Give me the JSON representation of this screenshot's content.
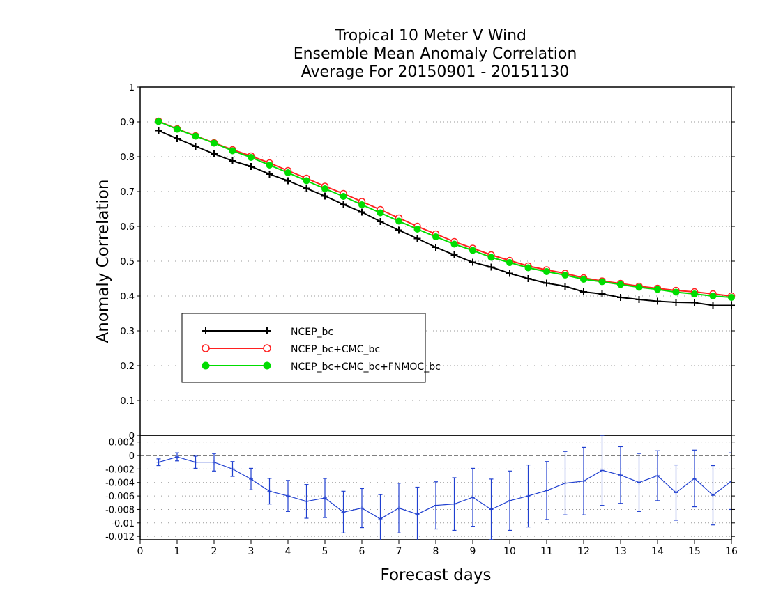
{
  "chart_data": [
    {
      "type": "line",
      "title": [
        "Tropical 10 Meter V Wind",
        "Ensemble Mean Anomaly Correlation",
        "Average For 20150901 - 20151130"
      ],
      "xlabel": "",
      "ylabel": "Anomaly Correlation",
      "xlim": [
        0,
        16
      ],
      "ylim": [
        0,
        1
      ],
      "yticks": [
        "0",
        "0.1",
        "0.2",
        "0.3",
        "0.4",
        "0.5",
        "0.6",
        "0.7",
        "0.8",
        "0.9",
        "1"
      ],
      "grid": "horizontal dotted",
      "legend_placement": "left",
      "x": [
        0.5,
        1,
        1.5,
        2,
        2.5,
        3,
        3.5,
        4,
        4.5,
        5,
        5.5,
        6,
        6.5,
        7,
        7.5,
        8,
        8.5,
        9,
        9.5,
        10,
        10.5,
        11,
        11.5,
        12,
        12.5,
        13,
        13.5,
        14,
        14.5,
        15,
        15.5,
        16
      ],
      "series": [
        {
          "name": "NCEP_bc",
          "color": "#000000",
          "marker": "plus",
          "values": [
            0.875,
            0.852,
            0.83,
            0.808,
            0.788,
            0.772,
            0.75,
            0.731,
            0.709,
            0.687,
            0.663,
            0.641,
            0.614,
            0.589,
            0.565,
            0.54,
            0.518,
            0.497,
            0.483,
            0.465,
            0.45,
            0.437,
            0.428,
            0.412,
            0.406,
            0.396,
            0.39,
            0.385,
            0.382,
            0.381,
            0.373,
            0.373
          ]
        },
        {
          "name": "NCEP_bc+CMC_bc",
          "color": "#ff2020",
          "marker": "open-circle",
          "values": [
            0.902,
            0.88,
            0.86,
            0.84,
            0.82,
            0.802,
            0.782,
            0.76,
            0.738,
            0.715,
            0.694,
            0.671,
            0.648,
            0.624,
            0.6,
            0.578,
            0.556,
            0.537,
            0.518,
            0.502,
            0.486,
            0.475,
            0.465,
            0.452,
            0.443,
            0.436,
            0.428,
            0.422,
            0.416,
            0.412,
            0.406,
            0.4
          ]
        },
        {
          "name": "NCEP_bc+CMC_bc+FNMOC_bc",
          "color": "#00dd00",
          "marker": "filled-circle",
          "values": [
            0.901,
            0.879,
            0.859,
            0.839,
            0.817,
            0.798,
            0.776,
            0.754,
            0.731,
            0.708,
            0.686,
            0.662,
            0.639,
            0.615,
            0.592,
            0.57,
            0.549,
            0.531,
            0.511,
            0.496,
            0.481,
            0.47,
            0.46,
            0.448,
            0.441,
            0.433,
            0.425,
            0.419,
            0.411,
            0.406,
            0.4,
            0.396
          ]
        }
      ]
    },
    {
      "type": "line",
      "xlabel": "Forecast days",
      "ylabel": "",
      "xlim": [
        0,
        16
      ],
      "ylim": [
        -0.0125,
        0.003
      ],
      "xticks": [
        "0",
        "1",
        "2",
        "3",
        "4",
        "5",
        "6",
        "7",
        "8",
        "9",
        "10",
        "11",
        "12",
        "13",
        "14",
        "15",
        "16"
      ],
      "yticks": [
        "-0.012",
        "-0.01",
        "-0.008",
        "-0.006",
        "-0.004",
        "-0.002",
        "0",
        "0.002"
      ],
      "top_axis_label": "0",
      "zero_line": "dashed",
      "grid": "horizontal dotted",
      "series": [
        {
          "name": "",
          "color": "#2040d0",
          "error_bars": true,
          "x": [
            0.5,
            1,
            1.5,
            2,
            2.5,
            3,
            3.5,
            4,
            4.5,
            5,
            5.5,
            6,
            6.5,
            7,
            7.5,
            8,
            8.5,
            9,
            9.5,
            10,
            10.5,
            11,
            11.5,
            12,
            12.5,
            13,
            13.5,
            14,
            14.5,
            15,
            15.5,
            16
          ],
          "values": [
            -0.001,
            -0.0002,
            -0.001,
            -0.001,
            -0.002,
            -0.0035,
            -0.0053,
            -0.006,
            -0.0068,
            -0.0063,
            -0.0084,
            -0.0078,
            -0.0094,
            -0.0078,
            -0.0087,
            -0.0074,
            -0.0072,
            -0.0062,
            -0.008,
            -0.0067,
            -0.006,
            -0.0052,
            -0.0041,
            -0.0038,
            -0.0022,
            -0.0029,
            -0.004,
            -0.003,
            -0.0055,
            -0.0034,
            -0.0059,
            -0.0038
          ],
          "error": [
            0.0005,
            0.0006,
            0.0009,
            0.0013,
            0.0011,
            0.0016,
            0.0019,
            0.0023,
            0.0025,
            0.0029,
            0.0031,
            0.0029,
            0.0036,
            0.0037,
            0.004,
            0.0035,
            0.0039,
            0.0043,
            0.0045,
            0.0044,
            0.0046,
            0.0043,
            0.0047,
            0.005,
            0.0052,
            0.0042,
            0.0043,
            0.0037,
            0.0041,
            0.0042,
            0.0044,
            0.0042
          ]
        }
      ]
    }
  ]
}
